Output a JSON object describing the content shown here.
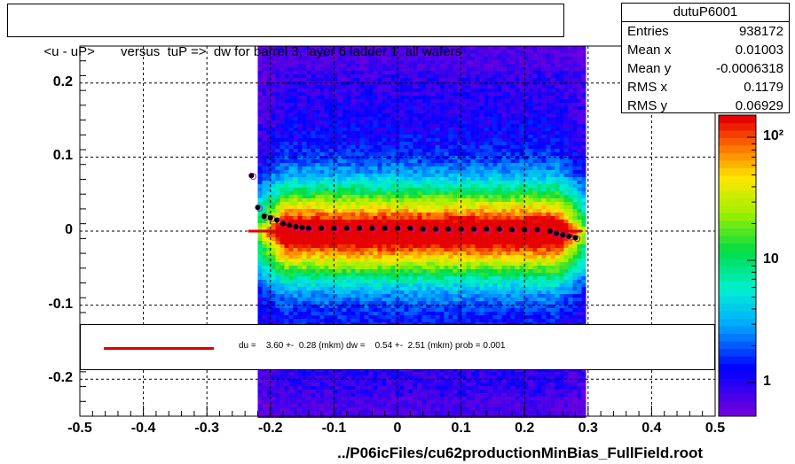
{
  "title": "<u - uP>       versus  tuP =>  dw for barrel 3, layer 6 ladder 1, all wafers",
  "stats": {
    "name": "dutuP6001",
    "rows": [
      {
        "label": "Entries",
        "value": "938172"
      },
      {
        "label": "Mean x",
        "value": "0.01003"
      },
      {
        "label": "Mean y",
        "value": "-0.0006318"
      },
      {
        "label": "RMS x",
        "value": "0.1179"
      },
      {
        "label": "RMS y",
        "value": "0.06929"
      }
    ]
  },
  "fit_text": "du =    3.60 +-  0.28 (mkm) dw =    0.54 +-  2.51 (mkm) prob = 0.001",
  "footer": "../P06icFiles/cu62productionMinBias_FullField.root",
  "colors": {
    "fit_line": "#e00000",
    "profile_black": "#000000",
    "profile_magenta": "#cc00cc"
  },
  "chart_data": {
    "type": "heatmap",
    "xlim": [
      -0.5,
      0.5
    ],
    "ylim": [
      -0.25,
      0.25
    ],
    "x_ticks": [
      "-0.5",
      "-0.4",
      "-0.3",
      "-0.2",
      "-0.1",
      "0",
      "0.1",
      "0.2",
      "0.3",
      "0.4",
      "0.5"
    ],
    "y_ticks": [
      "-0.2",
      "-0.1",
      "0",
      "0.1",
      "0.2"
    ],
    "z_scale": "log",
    "z_ticks": [
      "1",
      "10",
      "10²"
    ],
    "grid": true,
    "occupied_x_range": [
      -0.22,
      0.29
    ],
    "fit_line": {
      "x": [
        -0.235,
        0.29
      ],
      "y": [
        0.0,
        0.0
      ]
    },
    "profile": {
      "x": [
        -0.23,
        -0.22,
        -0.21,
        -0.2,
        -0.19,
        -0.18,
        -0.17,
        -0.16,
        -0.15,
        -0.14,
        -0.12,
        -0.1,
        -0.08,
        -0.06,
        -0.04,
        -0.02,
        0.0,
        0.02,
        0.04,
        0.06,
        0.08,
        0.1,
        0.12,
        0.14,
        0.16,
        0.18,
        0.2,
        0.22,
        0.24,
        0.25,
        0.26,
        0.27,
        0.28
      ],
      "y": [
        0.075,
        0.032,
        0.02,
        0.018,
        0.015,
        0.01,
        0.008,
        0.006,
        0.005,
        0.004,
        0.004,
        0.004,
        0.004,
        0.004,
        0.004,
        0.004,
        0.004,
        0.004,
        0.003,
        0.003,
        0.003,
        0.003,
        0.003,
        0.003,
        0.003,
        0.002,
        0.002,
        0.002,
        0.0,
        -0.003,
        -0.005,
        -0.007,
        -0.009
      ]
    }
  }
}
